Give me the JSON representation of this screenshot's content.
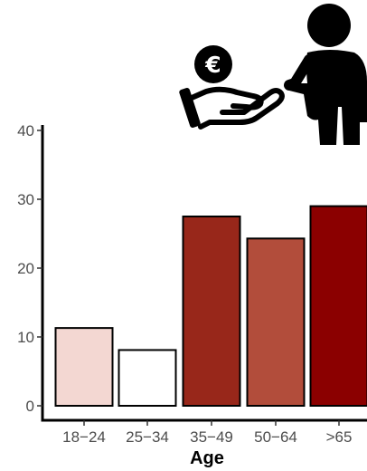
{
  "chart_data": {
    "type": "bar",
    "title": "",
    "xlabel": "Age",
    "ylabel": "",
    "categories": [
      "18−24",
      "25−34",
      "35−49",
      "50−64",
      ">65"
    ],
    "values": [
      11.3,
      8.1,
      27.5,
      24.3,
      29.0
    ],
    "bar_colors": [
      "#f3d7d2",
      "#ffffff",
      "#98271a",
      "#b24d3b",
      "#8b0000"
    ],
    "ylim": [
      0,
      40
    ],
    "yticks": [
      0,
      10,
      20,
      30,
      40
    ],
    "grid": false,
    "legend": "none"
  },
  "illustration": {
    "coin_symbol": "€",
    "icons": [
      "hand-offering-coin-icon",
      "person-icon"
    ],
    "colors": {
      "ink": "#000000"
    }
  }
}
